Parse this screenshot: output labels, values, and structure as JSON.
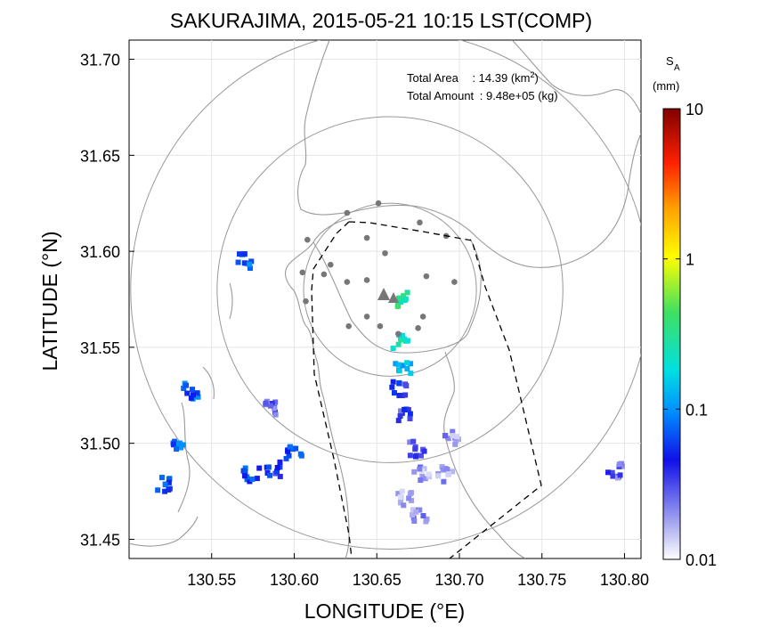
{
  "chart_data": {
    "type": "heatmap",
    "title": "SAKURAJIMA, 2015-05-21 10:15 LST(COMP)",
    "xlabel": "LONGITUDE (°E)",
    "ylabel": "LATITUDE (°N)",
    "xlim": [
      130.5,
      130.81
    ],
    "ylim": [
      31.44,
      31.71
    ],
    "xticks": [
      "130.55",
      "130.60",
      "130.65",
      "130.70",
      "130.75",
      "130.80"
    ],
    "yticks": [
      "31.45",
      "31.50",
      "31.55",
      "31.60",
      "31.65",
      "31.70"
    ],
    "annotations": {
      "total_area_label": "Total Area",
      "total_area_value": ": 14.39 (km",
      "total_area_exp": "2",
      "total_area_close": ")",
      "total_amount_label": "Total Amount",
      "total_amount_value": ": 9.48e+05 (kg)"
    },
    "colorbar": {
      "title_main": "S",
      "title_sub": "A",
      "unit": "(mm)",
      "scale": "log",
      "ticks": [
        "10",
        "1",
        "0.1",
        "0.01"
      ]
    },
    "vent_center": [
      130.658,
      31.58
    ],
    "range_rings_km": [
      5,
      10,
      15
    ],
    "ash_deposit_cells": [
      {
        "lon": 130.667,
        "lat": 31.575,
        "value": 0.3
      },
      {
        "lon": 130.664,
        "lat": 31.553,
        "value": 0.25
      },
      {
        "lon": 130.666,
        "lat": 31.54,
        "value": 0.12
      },
      {
        "lon": 130.664,
        "lat": 31.528,
        "value": 0.05
      },
      {
        "lon": 130.668,
        "lat": 31.514,
        "value": 0.04
      },
      {
        "lon": 130.674,
        "lat": 31.497,
        "value": 0.03
      },
      {
        "lon": 130.677,
        "lat": 31.484,
        "value": 0.02
      },
      {
        "lon": 130.667,
        "lat": 31.471,
        "value": 0.02
      },
      {
        "lon": 130.676,
        "lat": 31.463,
        "value": 0.02
      },
      {
        "lon": 130.695,
        "lat": 31.503,
        "value": 0.02
      },
      {
        "lon": 130.692,
        "lat": 31.484,
        "value": 0.02
      },
      {
        "lon": 130.537,
        "lat": 31.527,
        "value": 0.08
      },
      {
        "lon": 130.531,
        "lat": 31.498,
        "value": 0.08
      },
      {
        "lon": 130.522,
        "lat": 31.478,
        "value": 0.08
      },
      {
        "lon": 130.6,
        "lat": 31.496,
        "value": 0.06
      },
      {
        "lon": 130.574,
        "lat": 31.483,
        "value": 0.07
      },
      {
        "lon": 130.587,
        "lat": 31.486,
        "value": 0.05
      },
      {
        "lon": 130.586,
        "lat": 31.519,
        "value": 0.03
      },
      {
        "lon": 130.57,
        "lat": 31.595,
        "value": 0.08
      },
      {
        "lon": 130.794,
        "lat": 31.486,
        "value": 0.03
      }
    ]
  }
}
